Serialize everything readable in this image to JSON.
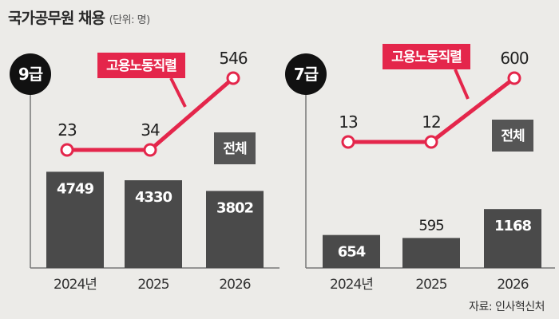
{
  "header": {
    "title": "국가공무원 채용",
    "unit": "(단위: 명)"
  },
  "source": "자료: 인사혁신처",
  "colors": {
    "bar": "#4a4a4a",
    "line": "#e4264b",
    "tag_dark": "#555555",
    "background": "#ecebe8"
  },
  "chart_data": [
    {
      "type": "bar",
      "panel_label": "9급",
      "categories": [
        "2024년",
        "2025",
        "2026"
      ],
      "series": [
        {
          "name": "전체",
          "values": [
            4749,
            4330,
            3802
          ]
        },
        {
          "name": "고용노동직렬",
          "values": [
            23,
            34,
            546
          ]
        }
      ]
    },
    {
      "type": "bar",
      "panel_label": "7급",
      "categories": [
        "2024년",
        "2025",
        "2026"
      ],
      "series": [
        {
          "name": "전체",
          "values": [
            654,
            595,
            1168
          ]
        },
        {
          "name": "고용노동직렬",
          "values": [
            13,
            12,
            600
          ]
        }
      ]
    }
  ]
}
